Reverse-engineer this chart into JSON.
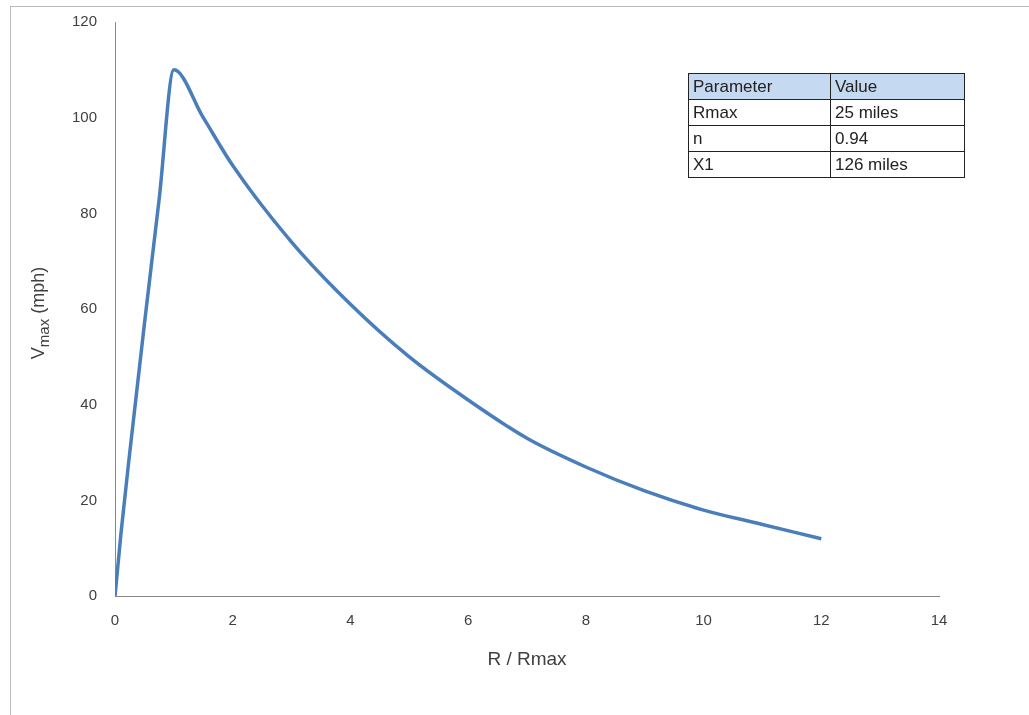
{
  "chart_data": {
    "type": "line",
    "xlabel": "R / Rmax",
    "ylabel": "V$_{max}$ (mph)",
    "x": [
      0,
      0.1,
      0.25,
      0.5,
      0.75,
      1,
      1.5,
      2,
      3,
      4,
      5,
      6,
      7,
      8,
      9,
      10,
      11,
      12
    ],
    "series": [
      {
        "color": "#4a7ebb",
        "values": [
          0,
          13,
          30,
          57,
          83,
          110,
          100,
          90,
          74,
          61,
          50,
          41,
          33,
          27,
          22,
          18,
          15,
          12
        ]
      }
    ],
    "xlim": [
      0,
      14
    ],
    "xticks": [
      0,
      2,
      4,
      6,
      8,
      10,
      12,
      14
    ],
    "ylim": [
      0,
      120
    ],
    "yticks": [
      0,
      20,
      40,
      60,
      80,
      100,
      120
    ],
    "grid": false,
    "legend": false,
    "marker": "none",
    "line_style": "solid",
    "annotations": [
      "Parameter",
      "Value",
      "Rmax",
      "25 miles",
      "n",
      "0.94",
      "X1",
      "126 miles"
    ]
  }
}
